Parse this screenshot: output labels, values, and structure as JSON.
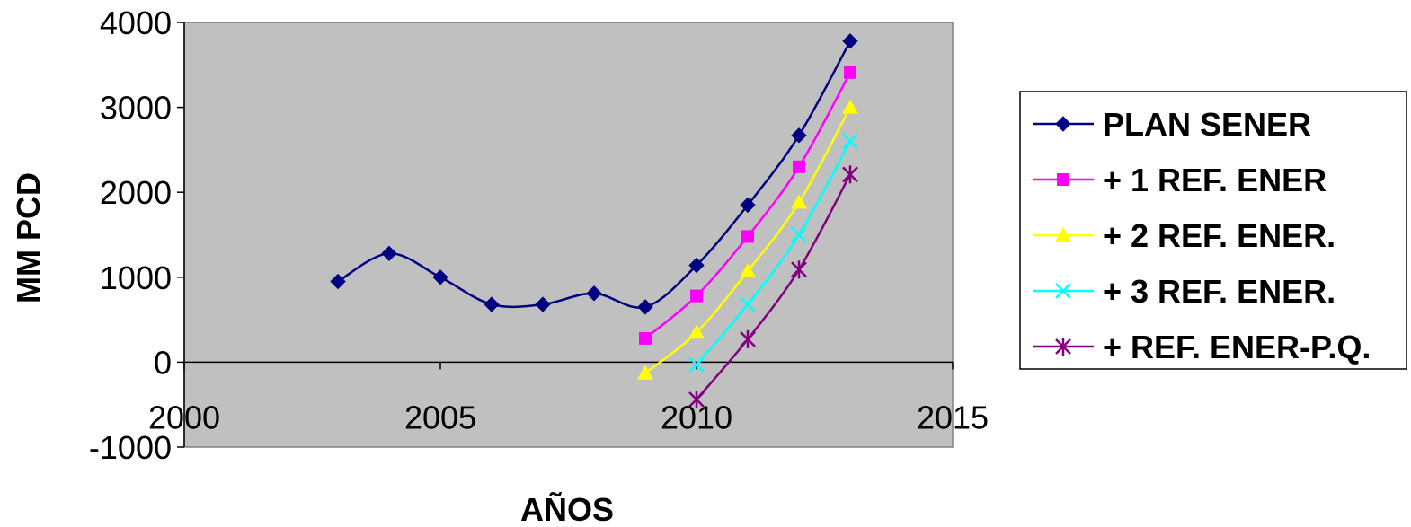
{
  "chart_data": {
    "type": "line",
    "xlabel": "AÑOS",
    "ylabel": "MM PCD",
    "xlim": [
      2000,
      2015
    ],
    "ylim": [
      -1000,
      4000
    ],
    "xticks": [
      2000,
      2005,
      2010,
      2015
    ],
    "yticks": [
      -1000,
      0,
      1000,
      2000,
      3000,
      4000
    ],
    "x_tick_labels": [
      "2000",
      "2005",
      "2010",
      "2015"
    ],
    "y_tick_labels": [
      "-1000",
      "0",
      "1000",
      "2000",
      "3000",
      "4000"
    ],
    "plot_background": "#c0c0c0",
    "gridlines": false,
    "legend_position": "right",
    "series": [
      {
        "name": "PLAN SENER",
        "color": "#000080",
        "marker": "diamond",
        "x": [
          2003,
          2004,
          2005,
          2006,
          2007,
          2008,
          2009,
          2010,
          2011,
          2012,
          2013
        ],
        "y": [
          950,
          1280,
          1000,
          680,
          680,
          810,
          650,
          1140,
          1850,
          2670,
          3780
        ]
      },
      {
        "name": "+ 1 REF. ENER",
        "color": "#ff00ff",
        "marker": "square",
        "x": [
          2009,
          2010,
          2011,
          2012,
          2013
        ],
        "y": [
          280,
          780,
          1480,
          2300,
          3410
        ]
      },
      {
        "name": "+ 2 REF. ENER.",
        "color": "#ffff00",
        "marker": "triangle",
        "x": [
          2009,
          2010,
          2011,
          2012,
          2013
        ],
        "y": [
          -130,
          350,
          1070,
          1880,
          3000
        ]
      },
      {
        "name": "+ 3 REF. ENER.",
        "color": "#00ffff",
        "marker": "x",
        "x": [
          2010,
          2011,
          2012,
          2013
        ],
        "y": [
          -30,
          680,
          1500,
          2600
        ]
      },
      {
        "name": "+ REF. ENER-P.Q.",
        "color": "#800080",
        "marker": "star",
        "x": [
          2010,
          2011,
          2012,
          2013
        ],
        "y": [
          -440,
          270,
          1090,
          2210
        ]
      }
    ]
  }
}
